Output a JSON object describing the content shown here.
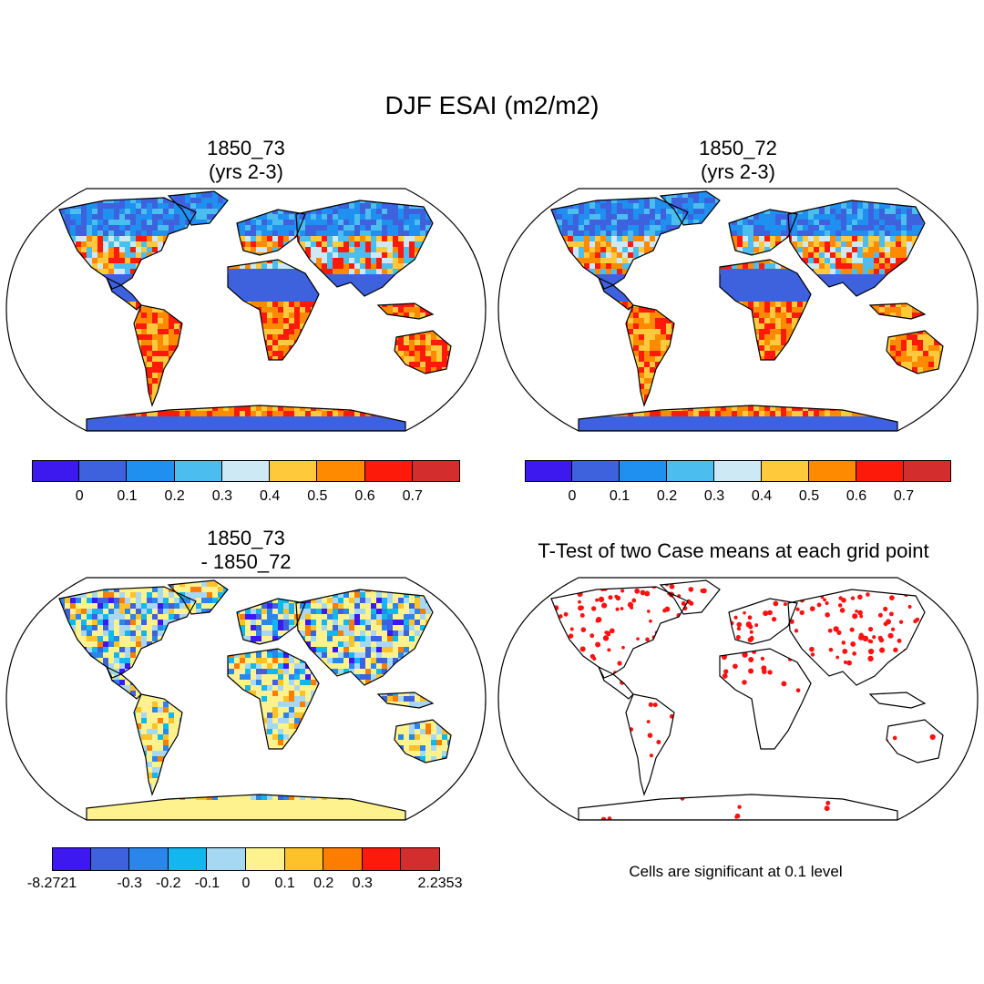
{
  "figure_title": "DJF ESAI (m2/m2)",
  "panels": [
    {
      "id": "p1",
      "title_line1": "1850_73",
      "title_line2": "(yrs 2-3)",
      "kind": "field"
    },
    {
      "id": "p2",
      "title_line1": "1850_72",
      "title_line2": "(yrs 2-3)",
      "kind": "field"
    },
    {
      "id": "p3",
      "title_line1": "1850_73",
      "title_line2": "- 1850_72",
      "kind": "difference"
    },
    {
      "id": "p4",
      "title_line1": "T-Test of two Case means at each grid point",
      "title_line2": "",
      "kind": "ttest"
    }
  ],
  "colorbars": {
    "field": {
      "colors": [
        "#3d19f0",
        "#3e61de",
        "#1f8ff0",
        "#4cbdef",
        "#cde9f6",
        "#fec93b",
        "#fd8a00",
        "#fd1a0b",
        "#d42d2d"
      ],
      "labels": [
        "0",
        "0.1",
        "0.2",
        "0.3",
        "0.4",
        "0.5",
        "0.6",
        "0.7"
      ]
    },
    "difference": {
      "colors": [
        "#3d19f0",
        "#3e61de",
        "#2b86ec",
        "#12b7f0",
        "#a6d8f4",
        "#fdf28e",
        "#fdc12a",
        "#fd7d00",
        "#fd1a0b",
        "#d42d2d"
      ],
      "labels": [
        "-8.2721",
        "-0.3",
        "-0.2",
        "-0.1",
        "0",
        "0.1",
        "0.2",
        "0.3",
        "2.2353"
      ]
    }
  },
  "significance_note": "Cells are significant at 0.1 level",
  "legend_colors": {
    "ttest_dots": "#ff1010",
    "ocean": "#ffffff",
    "coast": "#000000"
  }
}
